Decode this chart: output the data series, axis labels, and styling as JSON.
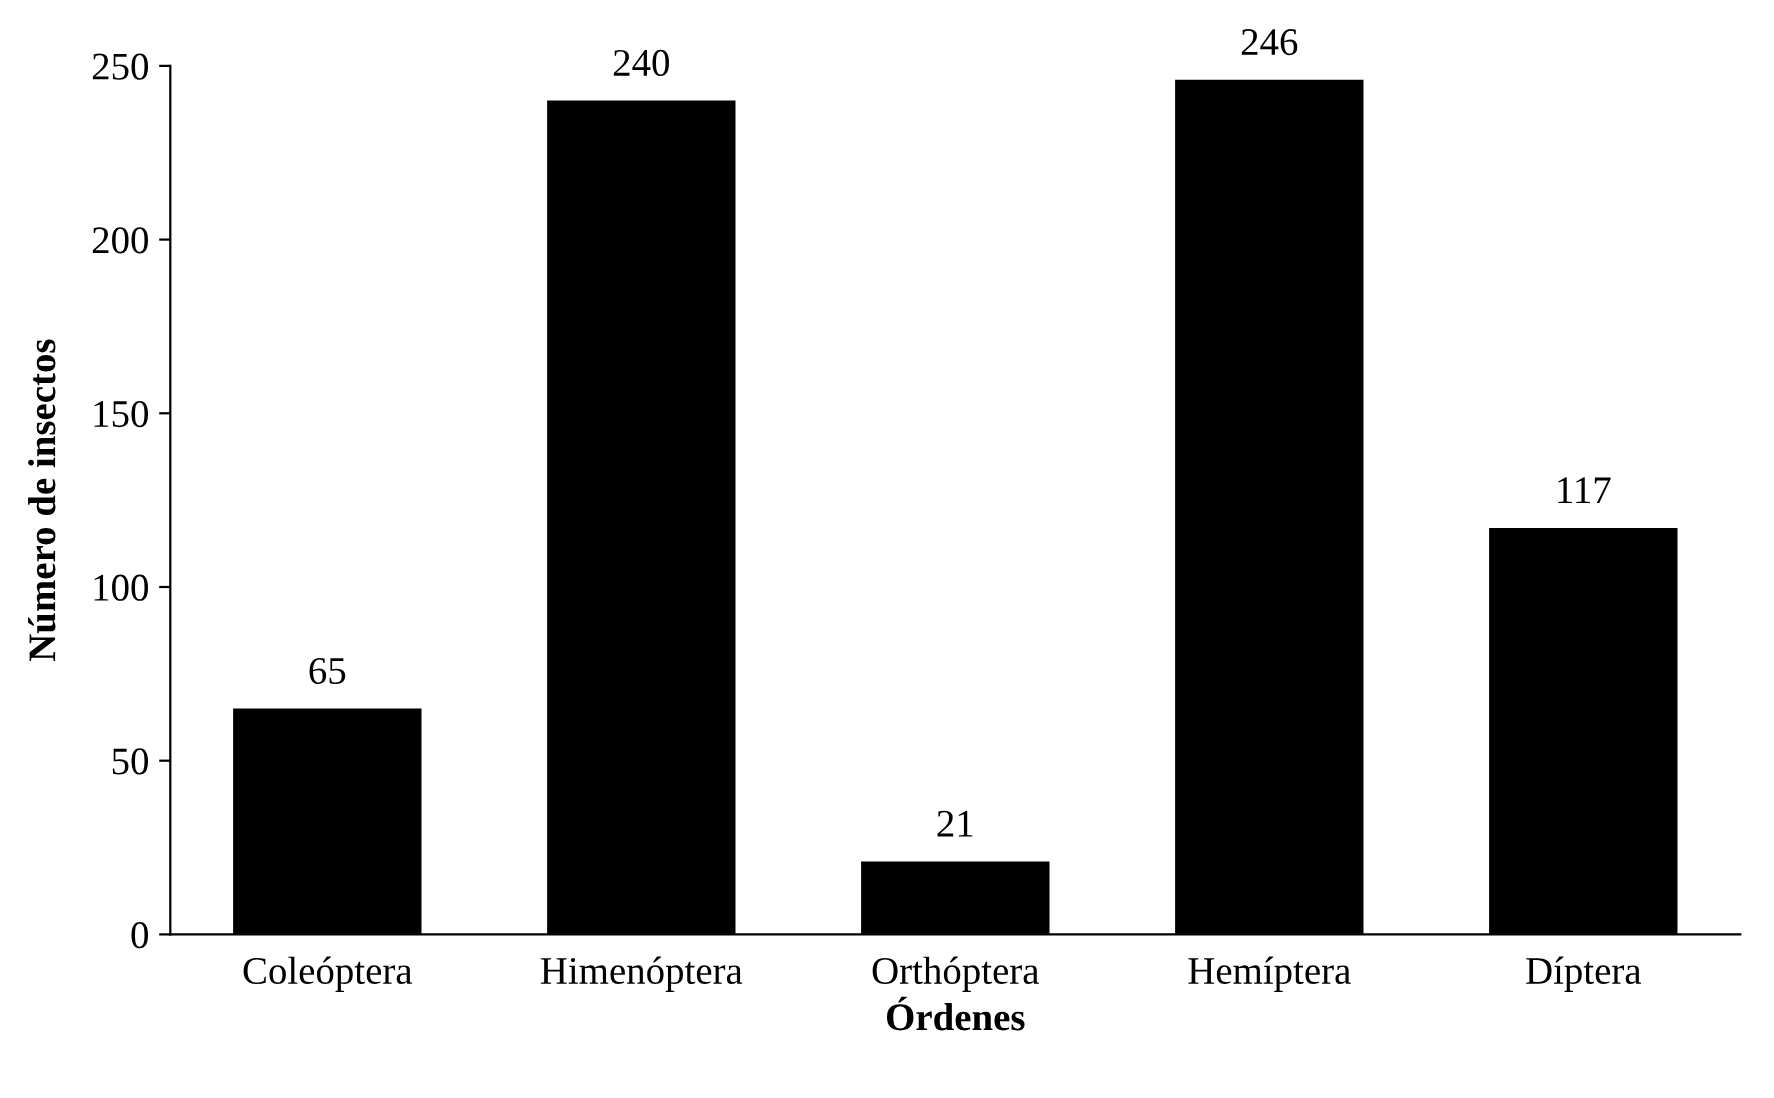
{
  "chart_data": {
    "type": "bar",
    "xlabel": "Órdenes",
    "ylabel": "Número de insectos",
    "categories": [
      "Coleóptera",
      "Himenóptera",
      "Orthóptera",
      "Hemíptera",
      "Díptera"
    ],
    "values": [
      65,
      240,
      21,
      246,
      117
    ],
    "color": "#000000",
    "ylim": [
      0,
      250
    ],
    "yticks": [
      0,
      50,
      100,
      150,
      200,
      250
    ],
    "grid": false,
    "data_labels": true
  }
}
